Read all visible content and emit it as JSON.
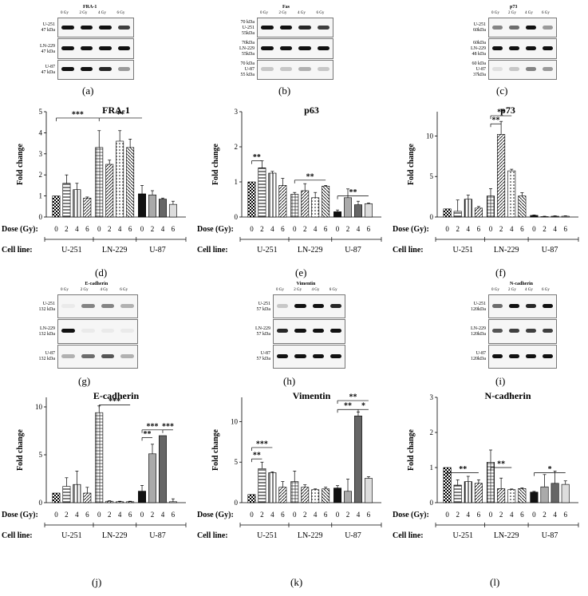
{
  "blots": {
    "a": {
      "title": "FRA-1",
      "lanes": [
        "0 Gy",
        "2 Gy",
        "4 Gy",
        "6 Gy"
      ],
      "rows": [
        [
          "U-251",
          "47 kDa"
        ],
        [
          "LN-229",
          "47 kDa"
        ],
        [
          "U-87",
          "47 kDa"
        ]
      ]
    },
    "b": {
      "title": "Fas",
      "lanes": [
        "0 Gy",
        "2 Gy",
        "4 Gy",
        "6 Gy"
      ],
      "rows": [
        [
          "70 kDa",
          "U-251",
          "55kDa"
        ],
        [
          "70kDa",
          "LN-229",
          "55kDa"
        ],
        [
          "70 kDa",
          "U-87",
          "55 kDa"
        ]
      ]
    },
    "c": {
      "title": "p73",
      "lanes": [
        "0 Gy",
        "2 Gy",
        "4 Gy",
        "6 Gy"
      ],
      "rows": [
        [
          "U-251",
          "60kDa"
        ],
        [
          "60kDa",
          "LN-229",
          "48 kDa"
        ],
        [
          "60 kDa",
          "U-87",
          "37kDa"
        ]
      ]
    },
    "g": {
      "title": "E-cadherin",
      "lanes": [
        "0 Gy",
        "2 Gy",
        "4 Gy",
        "6 Gy"
      ],
      "rows": [
        [
          "U-251",
          "132 kDa"
        ],
        [
          "LN-229",
          "132 kDa"
        ],
        [
          "U-87",
          "132 kDa"
        ]
      ]
    },
    "h": {
      "title": "Vimentin",
      "lanes": [
        "0 Gy",
        "2 Gy",
        "4 Gy",
        "6 Gy"
      ],
      "rows": [
        [
          "U-251",
          "57 kDa"
        ],
        [
          "LN-229",
          "57 kDa"
        ],
        [
          "U-87",
          "57 kDa"
        ]
      ]
    },
    "i": {
      "title": "N-cadherin",
      "lanes": [
        "0 Gy",
        "2 Gy",
        "4 Gy",
        "6 Gy"
      ],
      "rows": [
        [
          "U-251",
          "120kDa"
        ],
        [
          "LN-229",
          "120kDa"
        ],
        [
          "U-87",
          "120kDa"
        ]
      ]
    }
  },
  "panel_letters": {
    "a": "(a)",
    "b": "(b)",
    "c": "(c)",
    "d": "(d)",
    "e": "(e)",
    "f": "(f)",
    "g": "(g)",
    "h": "(h)",
    "i": "(i)",
    "j": "(j)",
    "k": "(k)",
    "l": "(l)"
  },
  "common": {
    "ylabel": "Fold change",
    "dose_label": "Dose (Gy):",
    "cell_label": "Cell line:",
    "doses": [
      "0",
      "2",
      "4",
      "6"
    ],
    "cell_lines": [
      "U-251",
      "LN-229",
      "U-87"
    ]
  },
  "chart_data": [
    {
      "id": "d",
      "type": "bar",
      "title": "FRA-1",
      "ylabel": "Fold change",
      "ylim": [
        0,
        5
      ],
      "yticks": [
        0,
        1,
        2,
        3,
        4,
        5
      ],
      "groups": [
        "U-251",
        "LN-229",
        "U-87"
      ],
      "categories": [
        "0",
        "2",
        "4",
        "6"
      ],
      "values": [
        [
          1.0,
          1.6,
          1.3,
          0.9
        ],
        [
          3.3,
          2.5,
          3.6,
          3.3
        ],
        [
          1.1,
          1.05,
          0.85,
          0.6
        ]
      ],
      "errors": [
        [
          0.0,
          0.4,
          0.3,
          0.05
        ],
        [
          0.8,
          0.2,
          0.5,
          0.4
        ],
        [
          0.4,
          0.2,
          0.05,
          0.15
        ]
      ],
      "annotations": [
        "***",
        "**"
      ]
    },
    {
      "id": "e",
      "type": "bar",
      "title": "p63",
      "ylabel": "Fold change",
      "ylim": [
        0,
        3
      ],
      "yticks": [
        0,
        1,
        2,
        3
      ],
      "groups": [
        "U-251",
        "LN-229",
        "U-87"
      ],
      "categories": [
        "0",
        "2",
        "4",
        "6"
      ],
      "values": [
        [
          1.0,
          1.4,
          1.25,
          0.9
        ],
        [
          0.65,
          0.75,
          0.55,
          0.88
        ],
        [
          0.15,
          0.55,
          0.35,
          0.38
        ]
      ],
      "errors": [
        [
          0.0,
          0.2,
          0.05,
          0.2
        ],
        [
          0.05,
          0.2,
          0.15,
          0.02
        ],
        [
          0.05,
          0.25,
          0.1,
          0.02
        ]
      ],
      "annotations": [
        "**",
        "**",
        "**"
      ]
    },
    {
      "id": "f",
      "type": "bar",
      "title": "p73",
      "ylabel": "Fold change",
      "ylim": [
        0,
        13
      ],
      "yticks": [
        0,
        5,
        10
      ],
      "groups": [
        "U-251",
        "LN-229",
        "U-87"
      ],
      "categories": [
        "0",
        "2",
        "4",
        "6"
      ],
      "values": [
        [
          1.0,
          0.7,
          2.2,
          1.1
        ],
        [
          2.6,
          10.2,
          5.7,
          2.6
        ],
        [
          0.2,
          0.05,
          0.1,
          0.1
        ]
      ],
      "errors": [
        [
          0.0,
          1.4,
          0.5,
          0.2
        ],
        [
          0.9,
          1.6,
          0.2,
          0.4
        ],
        [
          0.05,
          0.05,
          0.05,
          0.05
        ]
      ],
      "annotations": [
        "**",
        "**"
      ]
    },
    {
      "id": "j",
      "type": "bar",
      "title": "E-cadherin",
      "ylabel": "Fold change",
      "ylim": [
        0,
        11
      ],
      "yticks": [
        0,
        5,
        10
      ],
      "groups": [
        "U-251",
        "LN-229",
        "U-87"
      ],
      "categories": [
        "0",
        "2",
        "4",
        "6"
      ],
      "values": [
        [
          1.0,
          1.7,
          1.9,
          1.0
        ],
        [
          9.4,
          0.15,
          0.1,
          0.1
        ],
        [
          1.2,
          5.1,
          7.0,
          0.1
        ]
      ],
      "errors": [
        [
          0.0,
          0.9,
          1.4,
          0.6
        ],
        [
          0.7,
          0.05,
          0.05,
          0.05
        ],
        [
          0.6,
          1.0,
          0.0,
          0.3
        ]
      ],
      "annotations": [
        "***",
        "**",
        "***",
        "***"
      ]
    },
    {
      "id": "k",
      "type": "bar",
      "title": "Vimentin",
      "ylabel": "Fold change",
      "ylim": [
        0,
        13
      ],
      "yticks": [
        0,
        5,
        10
      ],
      "groups": [
        "U-251",
        "LN-229",
        "U-87"
      ],
      "categories": [
        "0",
        "2",
        "4",
        "6"
      ],
      "values": [
        [
          1.0,
          4.2,
          3.7,
          1.9
        ],
        [
          2.6,
          1.9,
          1.6,
          1.7
        ],
        [
          1.8,
          1.4,
          10.7,
          3.0
        ]
      ],
      "errors": [
        [
          0.0,
          0.8,
          0.1,
          0.7
        ],
        [
          1.3,
          0.3,
          0.1,
          0.2
        ],
        [
          0.3,
          1.5,
          0.5,
          0.2
        ]
      ],
      "annotations": [
        "**",
        "***",
        "**",
        "*",
        "**"
      ]
    },
    {
      "id": "l",
      "type": "bar",
      "title": "N-cadherin",
      "ylabel": "Fold change",
      "ylim": [
        0,
        3
      ],
      "yticks": [
        0,
        1,
        2,
        3
      ],
      "groups": [
        "U-251",
        "LN-229",
        "U-87"
      ],
      "categories": [
        "0",
        "2",
        "4",
        "6"
      ],
      "values": [
        [
          1.0,
          0.5,
          0.6,
          0.55
        ],
        [
          1.15,
          0.4,
          0.37,
          0.4
        ],
        [
          0.3,
          0.45,
          0.55,
          0.52
        ]
      ],
      "errors": [
        [
          0.0,
          0.15,
          0.15,
          0.1
        ],
        [
          0.35,
          0.3,
          0.02,
          0.02
        ],
        [
          0.02,
          0.35,
          0.35,
          0.1
        ]
      ],
      "annotations": [
        "**",
        "**",
        "*"
      ]
    }
  ]
}
